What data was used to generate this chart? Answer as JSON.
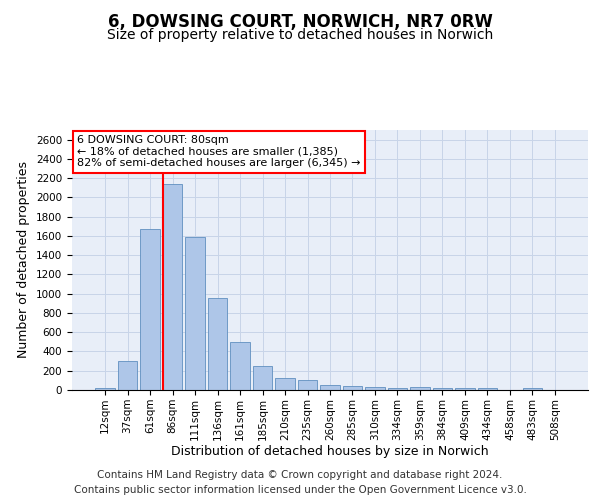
{
  "title": "6, DOWSING COURT, NORWICH, NR7 0RW",
  "subtitle": "Size of property relative to detached houses in Norwich",
  "xlabel": "Distribution of detached houses by size in Norwich",
  "ylabel": "Number of detached properties",
  "categories": [
    "12sqm",
    "37sqm",
    "61sqm",
    "86sqm",
    "111sqm",
    "136sqm",
    "161sqm",
    "185sqm",
    "210sqm",
    "235sqm",
    "260sqm",
    "285sqm",
    "310sqm",
    "334sqm",
    "359sqm",
    "384sqm",
    "409sqm",
    "434sqm",
    "458sqm",
    "483sqm",
    "508sqm"
  ],
  "values": [
    25,
    300,
    1670,
    2140,
    1590,
    960,
    500,
    250,
    120,
    100,
    50,
    45,
    35,
    20,
    30,
    20,
    20,
    20,
    5,
    25,
    5
  ],
  "bar_color": "#aec6e8",
  "bar_edge_color": "#6090c0",
  "vline_x_index": 2.57,
  "vline_color": "red",
  "annotation_text": "6 DOWSING COURT: 80sqm\n← 18% of detached houses are smaller (1,385)\n82% of semi-detached houses are larger (6,345) →",
  "annotation_box_color": "white",
  "annotation_box_edge_color": "red",
  "ylim": [
    0,
    2700
  ],
  "yticks": [
    0,
    200,
    400,
    600,
    800,
    1000,
    1200,
    1400,
    1600,
    1800,
    2000,
    2200,
    2400,
    2600
  ],
  "grid_color": "#c8d4e8",
  "bg_color": "#e8eef8",
  "footer_line1": "Contains HM Land Registry data © Crown copyright and database right 2024.",
  "footer_line2": "Contains public sector information licensed under the Open Government Licence v3.0.",
  "title_fontsize": 12,
  "subtitle_fontsize": 10,
  "xlabel_fontsize": 9,
  "ylabel_fontsize": 9,
  "tick_fontsize": 7.5,
  "annotation_fontsize": 8,
  "footer_fontsize": 7.5
}
